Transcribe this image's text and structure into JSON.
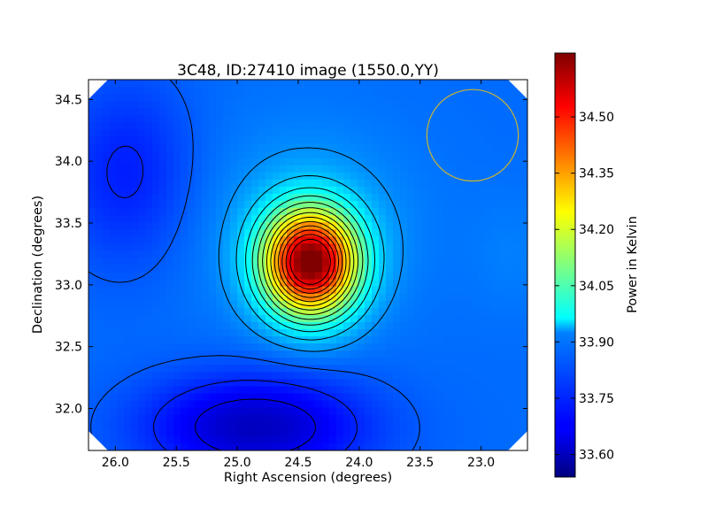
{
  "chart_data": {
    "type": "heatmap",
    "title": "3C48, ID:27410 image (1550.0,YY)",
    "xlabel": "Right Ascension (degrees)",
    "ylabel": "Declination (degrees)",
    "xlim": [
      26.22,
      22.62
    ],
    "ylim": [
      31.66,
      34.66
    ],
    "x_inverted": true,
    "xticks": [
      26.0,
      25.5,
      25.0,
      24.5,
      24.0,
      23.5,
      23.0
    ],
    "xtick_labels": [
      "26.0",
      "25.5",
      "25.0",
      "24.5",
      "24.0",
      "23.5",
      "23.0"
    ],
    "yticks": [
      32.0,
      32.5,
      33.0,
      33.5,
      34.0,
      34.5
    ],
    "ytick_labels": [
      "32.0",
      "32.5",
      "33.0",
      "33.5",
      "34.0",
      "34.5"
    ],
    "colorbar": {
      "label": "Power in Kelvin",
      "range": [
        33.54,
        34.67
      ],
      "ticks": [
        33.6,
        33.75,
        33.9,
        34.05,
        34.2,
        34.35,
        34.5
      ],
      "tick_labels": [
        "33.60",
        "33.75",
        "33.90",
        "34.05",
        "34.20",
        "34.35",
        "34.50"
      ],
      "colormap": "jet"
    },
    "peak": {
      "ra": 24.4,
      "dec": 33.18,
      "value": 34.66
    },
    "beam_circle": {
      "ra": 23.07,
      "dec": 34.21,
      "radius_deg": 0.37,
      "color": "#c8b432"
    },
    "grid": false,
    "contours": true
  }
}
